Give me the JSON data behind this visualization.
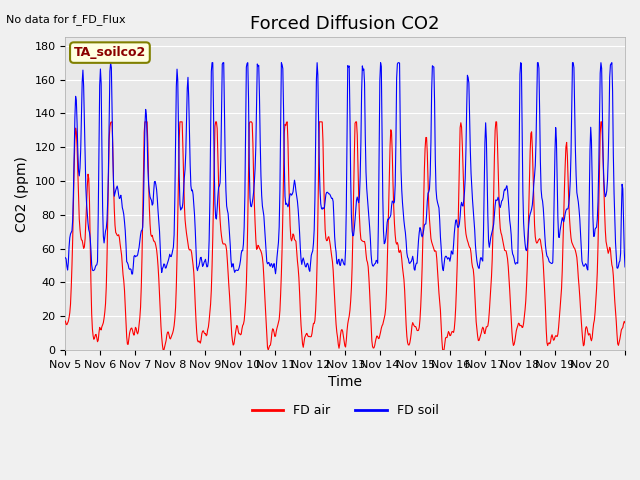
{
  "title": "Forced Diffusion CO2",
  "xlabel": "Time",
  "ylabel": "CO2 (ppm)",
  "top_left_text": "No data for f_FD_Flux",
  "annotation_box": "TA_soilco2",
  "ylim": [
    0,
    185
  ],
  "yticks": [
    0,
    20,
    40,
    60,
    80,
    100,
    120,
    140,
    160,
    180
  ],
  "xtick_positions": [
    0,
    1,
    2,
    3,
    4,
    5,
    6,
    7,
    8,
    9,
    10,
    11,
    12,
    13,
    14,
    15,
    16
  ],
  "xtick_labels": [
    "Nov 5",
    "Nov 6",
    "Nov 7",
    "Nov 8",
    "Nov 9",
    "Nov 10",
    "Nov 11",
    "Nov 12",
    "Nov 13",
    "Nov 14",
    "Nov 15",
    "Nov 16",
    "Nov 17",
    "Nov 18",
    "Nov 19",
    "Nov 20",
    ""
  ],
  "legend": [
    {
      "label": "FD air",
      "color": "#ff0000"
    },
    {
      "label": "FD soil",
      "color": "#0000ff"
    }
  ],
  "fd_air_color": "#ff0000",
  "fd_soil_color": "#0000ff",
  "background_color": "#f0f0f0",
  "plot_bg_color": "#e8e8e8",
  "title_fontsize": 13,
  "axis_label_fontsize": 10,
  "tick_fontsize": 8,
  "n_days": 16,
  "seed_air": 42,
  "seed_soil": 123
}
